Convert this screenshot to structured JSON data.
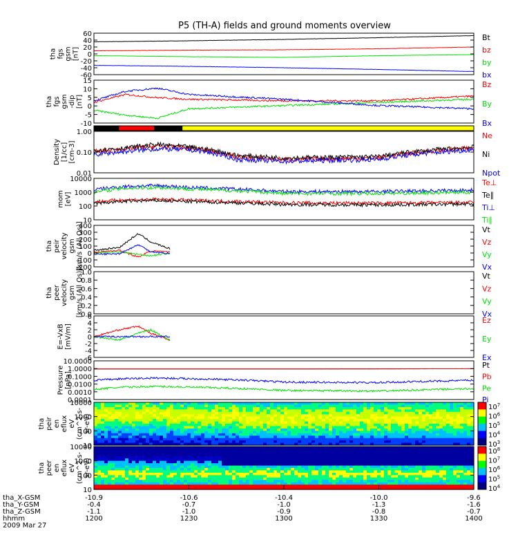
{
  "title": "P5 (TH-A) fields and ground moments overview",
  "colors": {
    "black": "#000000",
    "red": "#ff0000",
    "green": "#00e000",
    "blue": "#0000ff",
    "yellow": "#ffff00"
  },
  "chart_data": {
    "type": "line",
    "time_axis": {
      "ticks": [
        "1200",
        "1230",
        "1300",
        "1330",
        "1400"
      ],
      "rows": [
        {
          "label": "tha_X-GSM",
          "values": [
            "-10.9",
            "-10.6",
            "-10.4",
            "-10.0",
            "-9.6"
          ]
        },
        {
          "label": "tha_Y-GSM",
          "values": [
            "-0.4",
            "-0.7",
            "-1.0",
            "-1.3",
            "-1.6"
          ]
        },
        {
          "label": "tha_Z-GSM",
          "values": [
            "-1.1",
            "-1.0",
            "-0.9",
            "-0.8",
            "-0.7"
          ]
        },
        {
          "label": "hhmm",
          "values": [
            "1200",
            "1230",
            "1300",
            "1330",
            "1400"
          ]
        }
      ],
      "date": "2009 Mar 27"
    },
    "panels": [
      {
        "id": "fgs-gsm",
        "ylabel": [
          "tha",
          "fgs",
          "gsm",
          "[nT]"
        ],
        "ylim": [
          -60,
          60
        ],
        "yticks": [
          "60",
          "40",
          "20",
          "0",
          "-20",
          "-40",
          "-60"
        ],
        "series": [
          {
            "name": "Bt",
            "color": "black",
            "x": [
              0,
              30,
              60,
              90,
              120
            ],
            "y": [
              35,
              38,
              42,
              47,
              53
            ]
          },
          {
            "name": "bz",
            "color": "red",
            "x": [
              0,
              30,
              60,
              90,
              120
            ],
            "y": [
              9,
              11,
              12,
              15,
              20
            ]
          },
          {
            "name": "by",
            "color": "green",
            "x": [
              0,
              30,
              60,
              90,
              120
            ],
            "y": [
              -5,
              -8,
              -10,
              -5,
              -2
            ]
          },
          {
            "name": "bx",
            "color": "blue",
            "x": [
              0,
              30,
              60,
              90,
              120
            ],
            "y": [
              -33,
              -36,
              -40,
              -45,
              -51
            ]
          }
        ]
      },
      {
        "id": "fgs-gsm-dip",
        "ylabel": [
          "tha",
          "fgs",
          "gsm",
          "-dip",
          "[nT]"
        ],
        "ylim": [
          -12,
          15
        ],
        "yticks": [
          "15",
          "10",
          "5",
          "0",
          "-5",
          "-10"
        ],
        "series": [
          {
            "name": "Bz",
            "color": "red",
            "x": [
              0,
              10,
              20,
              30,
              60,
              90,
              120
            ],
            "y": [
              1,
              6,
              4,
              3,
              2,
              2,
              5
            ]
          },
          {
            "name": "By",
            "color": "green",
            "x": [
              0,
              10,
              20,
              30,
              60,
              90,
              120
            ],
            "y": [
              -4,
              -7,
              -9,
              -3,
              -1,
              1,
              3
            ]
          },
          {
            "name": "Bx",
            "color": "blue",
            "x": [
              0,
              10,
              20,
              30,
              60,
              90,
              120
            ],
            "y": [
              2,
              8,
              10,
              6,
              3,
              -1,
              -3
            ]
          }
        ]
      },
      {
        "id": "density",
        "ylabel": [
          "Density",
          "[1/cc]",
          "[cm-3]"
        ],
        "ylim": [
          0.01,
          1.5
        ],
        "log": true,
        "yticks": [
          "1.00",
          "0.10",
          "0.01"
        ],
        "series": [
          {
            "name": "Ne",
            "color": "red",
            "x": [
              0,
              10,
              20,
              30,
              45,
              60,
              90,
              120
            ],
            "y": [
              0.13,
              0.18,
              0.25,
              0.2,
              0.07,
              0.05,
              0.06,
              0.2
            ]
          },
          {
            "name": "Ni",
            "color": "black",
            "x": [
              0,
              10,
              20,
              30,
              45,
              60,
              90,
              120
            ],
            "y": [
              0.15,
              0.2,
              0.3,
              0.22,
              0.08,
              0.06,
              0.07,
              0.22
            ]
          },
          {
            "name": "Npot",
            "color": "blue",
            "x": [
              0,
              10,
              20,
              30,
              45,
              60,
              90,
              120
            ],
            "y": [
              0.09,
              0.13,
              0.18,
              0.16,
              0.05,
              0.04,
              0.05,
              0.16
            ]
          }
        ]
      },
      {
        "id": "moments-T",
        "ylabel": [
          "mom",
          "[eV]"
        ],
        "ylim": [
          10,
          10000
        ],
        "log": true,
        "yticks": [
          "10000",
          "1000",
          "100",
          "10"
        ],
        "series": [
          {
            "name": "Te⊥",
            "color": "red",
            "x": [
              0,
              10,
              20,
              30,
              60,
              90,
              120
            ],
            "y": [
              200,
              280,
              300,
              260,
              170,
              160,
              180
            ]
          },
          {
            "name": "Te∥",
            "color": "black",
            "x": [
              0,
              10,
              20,
              30,
              60,
              90,
              120
            ],
            "y": [
              150,
              220,
              250,
              210,
              130,
              120,
              140
            ]
          },
          {
            "name": "Ti⊥",
            "color": "blue",
            "x": [
              0,
              10,
              20,
              30,
              60,
              90,
              120
            ],
            "y": [
              1500,
              2600,
              3000,
              2200,
              1100,
              1100,
              1400
            ]
          },
          {
            "name": "Ti∥",
            "color": "green",
            "x": [
              0,
              10,
              20,
              30,
              60,
              90,
              120
            ],
            "y": [
              1000,
              1900,
              2200,
              1700,
              800,
              800,
              1000
            ]
          }
        ]
      },
      {
        "id": "peir-velocity",
        "ylabel": [
          "tha",
          "peir",
          "velocity",
          "gsm",
          "[km/s (All Qs)]"
        ],
        "ylim": [
          -200,
          400
        ],
        "yticks": [
          "400",
          "300",
          "200",
          "100",
          "0",
          "-100",
          "-200"
        ],
        "series": [
          {
            "name": "Vt",
            "color": "black",
            "x": [
              0,
              8,
              14,
              18,
              24
            ],
            "y": [
              40,
              80,
              280,
              160,
              60
            ]
          },
          {
            "name": "Vz",
            "color": "red",
            "x": [
              0,
              8,
              14,
              18,
              24
            ],
            "y": [
              10,
              40,
              -60,
              30,
              10
            ]
          },
          {
            "name": "Vy",
            "color": "green",
            "x": [
              0,
              8,
              14,
              18,
              24
            ],
            "y": [
              0,
              20,
              -20,
              -40,
              0
            ]
          },
          {
            "name": "Vx",
            "color": "blue",
            "x": [
              0,
              8,
              14,
              18,
              24
            ],
            "y": [
              -20,
              -10,
              120,
              20,
              -10
            ]
          }
        ]
      },
      {
        "id": "peer-velocity",
        "ylabel": [
          "tha",
          "peer",
          "velocity",
          "gsm",
          "[km/s (All Qs)]"
        ],
        "ylim": [
          0,
          1
        ],
        "yticks": [
          "1.0",
          "0.8",
          "0.6",
          "0.4",
          "0.2",
          "0.0"
        ],
        "series": [
          {
            "name": "Vt",
            "color": "black",
            "x": [],
            "y": []
          },
          {
            "name": "Vz",
            "color": "red",
            "x": [],
            "y": []
          },
          {
            "name": "Vy",
            "color": "green",
            "x": [],
            "y": []
          },
          {
            "name": "Vx",
            "color": "blue",
            "x": [],
            "y": []
          }
        ]
      },
      {
        "id": "efield",
        "ylabel": [
          "E=-VxB",
          "[mV/m]"
        ],
        "ylim": [
          -6,
          6
        ],
        "yticks": [
          "6",
          "4",
          "2",
          "0",
          "-2",
          "-4",
          "-6"
        ],
        "series": [
          {
            "name": "Ez",
            "color": "red",
            "x": [
              0,
              8,
              14,
              18,
              24
            ],
            "y": [
              0,
              2,
              3,
              1,
              -1
            ]
          },
          {
            "name": "Ey",
            "color": "green",
            "x": [
              0,
              8,
              14,
              18,
              24
            ],
            "y": [
              0,
              -1,
              1,
              2,
              -1
            ]
          },
          {
            "name": "Ex",
            "color": "blue",
            "x": [
              0,
              8,
              14,
              18,
              24
            ],
            "y": [
              0,
              0,
              0,
              0,
              0
            ]
          }
        ]
      },
      {
        "id": "pressure",
        "ylabel": [
          "Pressure",
          "[nPa]"
        ],
        "ylim": [
          0.0001,
          10
        ],
        "log": true,
        "yticks": [
          "10.0000",
          "1.0000",
          "0.1000",
          "0.0100",
          "0.0010",
          "0.0001"
        ],
        "series": [
          {
            "name": "Pt",
            "color": "black",
            "x": [
              0,
              60,
              120
            ],
            "y": [
              0.9,
              0.9,
              0.95
            ]
          },
          {
            "name": "Pb",
            "color": "red",
            "x": [
              0,
              60,
              120
            ],
            "y": [
              0.9,
              0.88,
              0.95
            ]
          },
          {
            "name": "Pe",
            "color": "green",
            "x": [
              0,
              10,
              20,
              30,
              60,
              90,
              120
            ],
            "y": [
              0.002,
              0.004,
              0.005,
              0.004,
              0.0015,
              0.0012,
              0.0025
            ]
          },
          {
            "name": "Pi",
            "color": "blue",
            "x": [
              0,
              10,
              20,
              30,
              60,
              90,
              120
            ],
            "y": [
              0.03,
              0.05,
              0.06,
              0.05,
              0.018,
              0.015,
              0.03
            ]
          }
        ]
      },
      {
        "id": "peir-spec",
        "type": "heatmap",
        "ylabel": [
          "tha",
          "peir",
          "en",
          "eflux",
          "eV",
          "(cm^2-s-",
          "sr-eV)"
        ],
        "ylim": [
          10,
          30000
        ],
        "log": true,
        "yticks": [
          "10000",
          "1000",
          "100",
          "10"
        ],
        "colorbar": [
          "10^7",
          "10^6",
          "10^5",
          "10^4",
          "10^3"
        ]
      },
      {
        "id": "peer-spec",
        "type": "heatmap",
        "ylabel": [
          "tha",
          "peer",
          "en",
          "eflux",
          "eV",
          "(cm^2-s-",
          "sr-eV)"
        ],
        "ylim": [
          10,
          30000
        ],
        "log": true,
        "yticks": [
          "10000",
          "1000",
          "100",
          "10"
        ],
        "colorbar": [
          "10^8",
          "10^7",
          "10^6",
          "10^5",
          "10^4"
        ]
      }
    ],
    "mode_bar": {
      "colors": [
        "black",
        "red",
        "black",
        "yellow"
      ]
    }
  }
}
